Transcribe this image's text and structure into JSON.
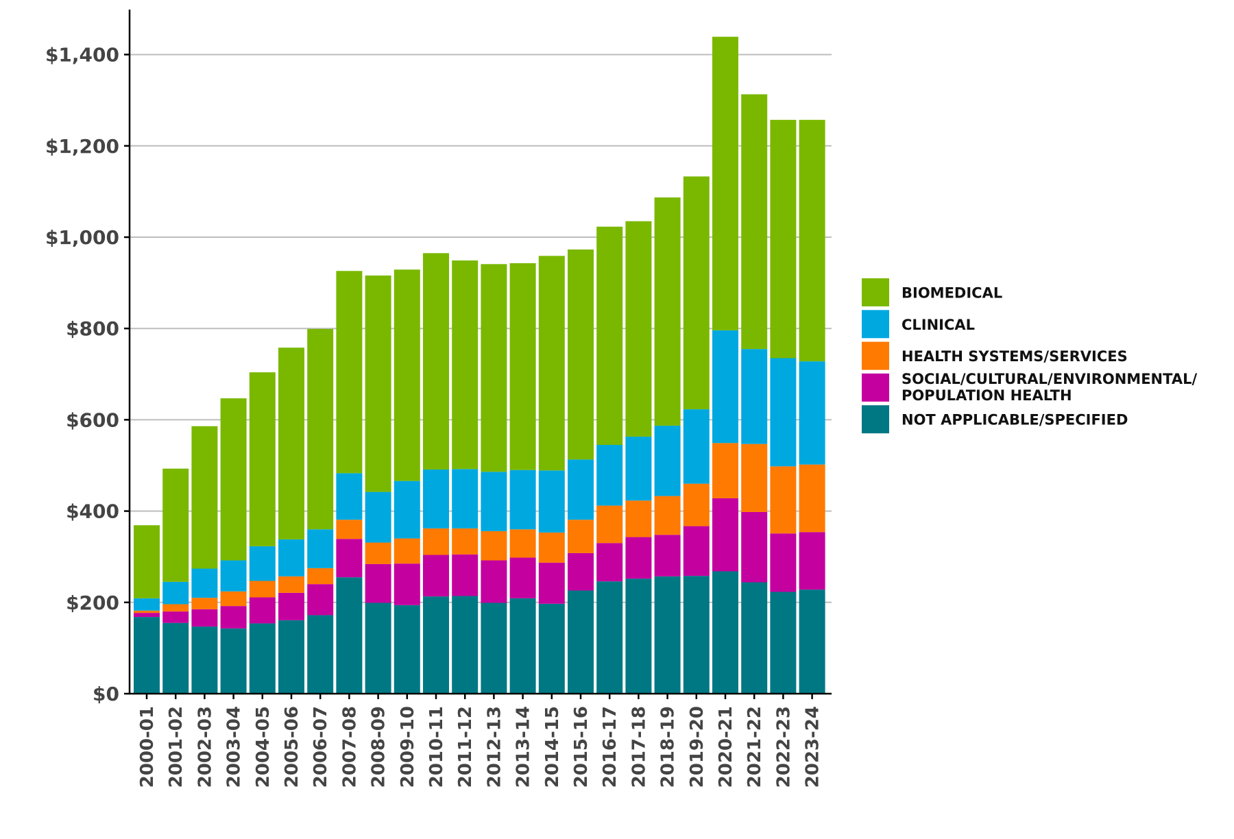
{
  "chart_data": {
    "type": "bar",
    "stacked": true,
    "title": "",
    "xlabel": "",
    "ylabel": "",
    "ylim": [
      0,
      1500
    ],
    "yticks": [
      0,
      200,
      400,
      600,
      800,
      1000,
      1200,
      1400
    ],
    "ytick_labels": [
      "$0",
      "$200",
      "$400",
      "$600",
      "$800",
      "$1,000",
      "$1,200",
      "$1,400"
    ],
    "grid": "horizontal",
    "legend_position": "right",
    "categories": [
      "2000-01",
      "2001-02",
      "2002-03",
      "2003-04",
      "2004-05",
      "2005-06",
      "2006-07",
      "2007-08",
      "2008-09",
      "2009-10",
      "2010-11",
      "2011-12",
      "2012-13",
      "2013-14",
      "2014-15",
      "2015-16",
      "2016-17",
      "2017-18",
      "2018-19",
      "2019-20",
      "2020-21",
      "2021-22",
      "2022-23",
      "2023-24"
    ],
    "series": [
      {
        "name": "NOT APPLICABLE/SPECIFIED",
        "color": "#007884",
        "values": [
          168,
          155,
          147,
          143,
          154,
          161,
          172,
          255,
          199,
          194,
          213,
          214,
          199,
          209,
          197,
          226,
          246,
          252,
          257,
          258,
          268,
          244,
          223,
          228
        ]
      },
      {
        "name": "SOCIAL/CULTURAL/ENVIRONMENTAL/ POPULATION HEALTH",
        "color": "#C4009F",
        "values": [
          9,
          25,
          38,
          49,
          57,
          60,
          68,
          84,
          85,
          91,
          91,
          91,
          93,
          89,
          90,
          82,
          84,
          91,
          91,
          109,
          160,
          154,
          128,
          126
        ]
      },
      {
        "name": "HEALTH SYSTEMS/SERVICES",
        "color": "#FF7A00",
        "values": [
          5,
          16,
          25,
          32,
          36,
          36,
          35,
          42,
          47,
          55,
          58,
          57,
          64,
          62,
          66,
          73,
          82,
          80,
          85,
          93,
          121,
          149,
          147,
          148
        ]
      },
      {
        "name": "CLINICAL",
        "color": "#00A8E0",
        "values": [
          27,
          49,
          64,
          68,
          76,
          81,
          85,
          102,
          111,
          126,
          129,
          130,
          130,
          130,
          136,
          132,
          133,
          140,
          154,
          163,
          247,
          208,
          237,
          226
        ]
      },
      {
        "name": "BIOMEDICAL",
        "color": "#7AB800",
        "values": [
          160,
          248,
          312,
          355,
          381,
          420,
          439,
          443,
          474,
          463,
          474,
          457,
          455,
          453,
          470,
          460,
          478,
          472,
          500,
          510,
          643,
          558,
          522,
          529
        ]
      }
    ],
    "legend": [
      {
        "lines": [
          "BIOMEDICAL"
        ],
        "color": "#7AB800"
      },
      {
        "lines": [
          "CLINICAL"
        ],
        "color": "#00A8E0"
      },
      {
        "lines": [
          "HEALTH SYSTEMS/SERVICES"
        ],
        "color": "#FF7A00"
      },
      {
        "lines": [
          "SOCIAL/CULTURAL/ENVIRONMENTAL/",
          "POPULATION HEALTH"
        ],
        "color": "#C4009F"
      },
      {
        "lines": [
          "NOT APPLICABLE/SPECIFIED"
        ],
        "color": "#007884"
      }
    ]
  }
}
